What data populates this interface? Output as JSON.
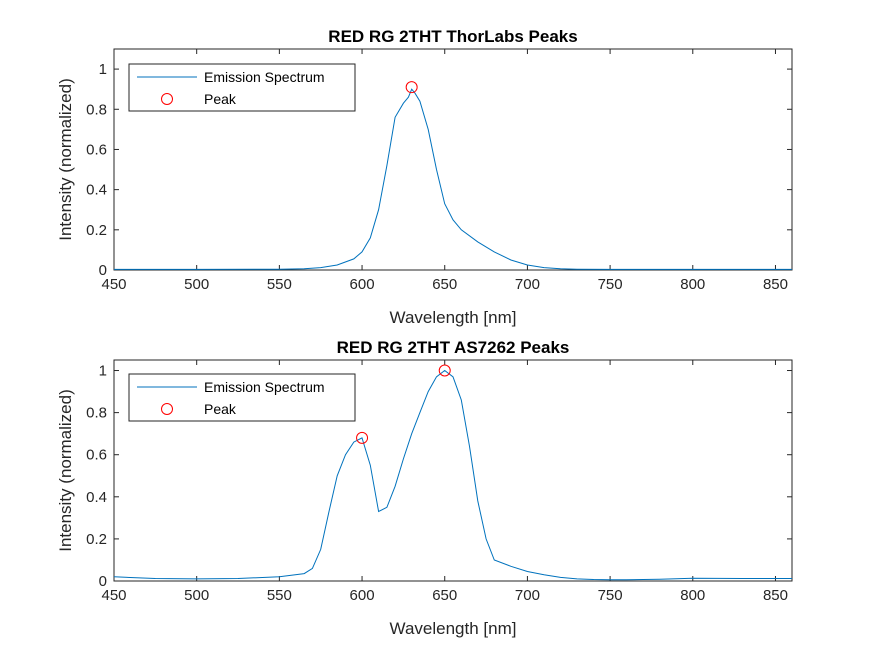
{
  "colors": {
    "series": "#0072BD",
    "peak": "#FF0000",
    "axis": "#262626"
  },
  "chart_data": [
    {
      "type": "line",
      "title": "RED RG 2THT ThorLabs Peaks",
      "xlabel": "Wavelength [nm]",
      "ylabel": "Intensity (normalized)",
      "xlim": [
        450,
        860
      ],
      "ylim": [
        0,
        1.1
      ],
      "xticks": [
        450,
        500,
        550,
        600,
        650,
        700,
        750,
        800,
        850
      ],
      "yticks": [
        0,
        0.2,
        0.4,
        0.6,
        0.8,
        1
      ],
      "yticklabels": [
        "0",
        "0.2",
        "0.4",
        "0.6",
        "0.8",
        "1"
      ],
      "legend": {
        "location": "top-left",
        "entries": [
          "Emission Spectrum",
          "Peak"
        ]
      },
      "series": [
        {
          "name": "Emission Spectrum",
          "x": [
            450,
            500,
            550,
            565,
            575,
            585,
            595,
            600,
            605,
            610,
            615,
            620,
            625,
            628,
            630,
            632,
            635,
            640,
            645,
            650,
            655,
            660,
            670,
            680,
            690,
            700,
            710,
            720,
            730,
            750,
            800,
            860
          ],
          "y": [
            0.003,
            0.003,
            0.004,
            0.006,
            0.012,
            0.025,
            0.055,
            0.09,
            0.16,
            0.3,
            0.52,
            0.76,
            0.83,
            0.86,
            0.9,
            0.88,
            0.84,
            0.7,
            0.5,
            0.33,
            0.25,
            0.2,
            0.14,
            0.09,
            0.05,
            0.025,
            0.012,
            0.006,
            0.004,
            0.003,
            0.003,
            0.003
          ]
        }
      ],
      "peaks": [
        {
          "x": 630,
          "y": 0.91
        }
      ]
    },
    {
      "type": "line",
      "title": "RED RG 2THT AS7262 Peaks",
      "xlabel": "Wavelength [nm]",
      "ylabel": "Intensity (normalized)",
      "xlim": [
        450,
        860
      ],
      "ylim": [
        0,
        1.05
      ],
      "xticks": [
        450,
        500,
        550,
        600,
        650,
        700,
        750,
        800,
        850
      ],
      "yticks": [
        0,
        0.2,
        0.4,
        0.6,
        0.8,
        1
      ],
      "yticklabels": [
        "0",
        "0.2",
        "0.4",
        "0.6",
        "0.8",
        "1"
      ],
      "legend": {
        "location": "top-left",
        "entries": [
          "Emission Spectrum",
          "Peak"
        ]
      },
      "series": [
        {
          "name": "Emission Spectrum",
          "x": [
            450,
            475,
            500,
            525,
            550,
            565,
            570,
            575,
            580,
            585,
            590,
            595,
            600,
            605,
            610,
            615,
            620,
            625,
            630,
            635,
            640,
            645,
            650,
            655,
            660,
            665,
            670,
            675,
            680,
            690,
            700,
            710,
            720,
            730,
            740,
            750,
            760,
            780,
            800,
            830,
            860
          ],
          "y": [
            0.02,
            0.012,
            0.01,
            0.012,
            0.02,
            0.035,
            0.06,
            0.15,
            0.33,
            0.5,
            0.6,
            0.66,
            0.68,
            0.55,
            0.33,
            0.35,
            0.45,
            0.58,
            0.7,
            0.8,
            0.9,
            0.97,
            1.0,
            0.97,
            0.86,
            0.64,
            0.38,
            0.2,
            0.1,
            0.07,
            0.045,
            0.03,
            0.017,
            0.01,
            0.007,
            0.006,
            0.006,
            0.008,
            0.013,
            0.012,
            0.012
          ]
        }
      ],
      "peaks": [
        {
          "x": 600,
          "y": 0.68
        },
        {
          "x": 650,
          "y": 1.0
        }
      ]
    }
  ]
}
